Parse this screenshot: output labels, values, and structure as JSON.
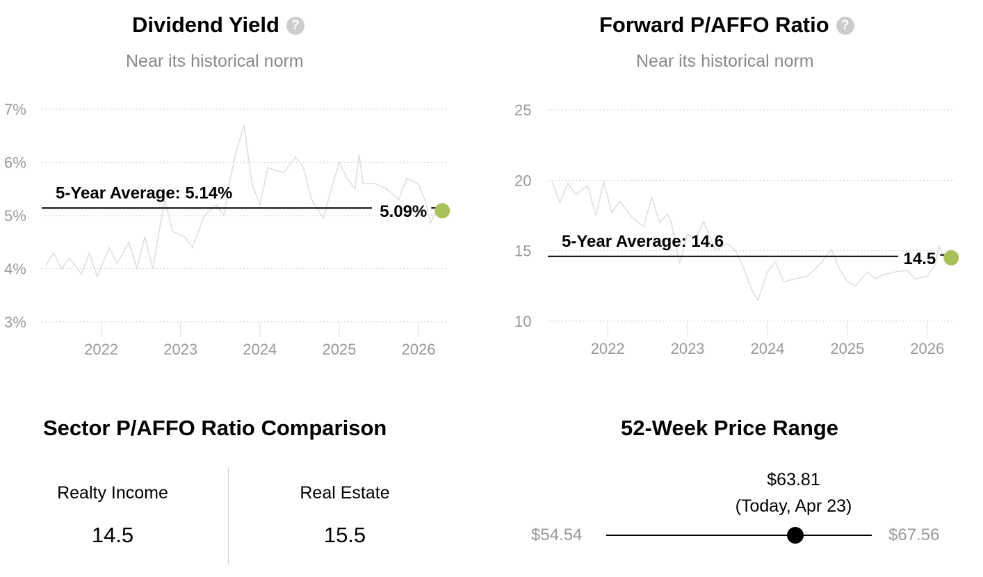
{
  "charts_header": [
    {
      "title": "Dividend Yield",
      "subtitle": "Near its historical norm",
      "help_icon": "question-circle-icon"
    },
    {
      "title": "Forward P/AFFO Ratio",
      "subtitle": "Near its historical norm",
      "help_icon": "question-circle-icon"
    }
  ],
  "chart_data": [
    {
      "type": "line",
      "title": "Dividend Yield",
      "subtitle": "Near its historical norm",
      "ylim": [
        3,
        7
      ],
      "yticks": [
        3,
        4,
        5,
        6,
        7
      ],
      "ytick_labels": [
        "3%",
        "4%",
        "5%",
        "6%",
        "7%"
      ],
      "xticks": [
        2022,
        2023,
        2024,
        2025,
        2026
      ],
      "xtick_labels": [
        "2022",
        "2023",
        "2024",
        "2025",
        "2026"
      ],
      "xlim": [
        2021.25,
        2026.35
      ],
      "grid": true,
      "line_color": "#dddddd",
      "average": {
        "value": 5.14,
        "label": "5-Year Average: 5.14%"
      },
      "current": {
        "value": 5.09,
        "label": "5.09%",
        "color": "#a8c05a"
      },
      "series": [
        {
          "x": [
            2021.3,
            2021.4,
            2021.5,
            2021.6,
            2021.75,
            2021.85,
            2021.95,
            2022.1,
            2022.2,
            2022.35,
            2022.45,
            2022.55,
            2022.65,
            2022.8,
            2022.9,
            2023.05,
            2023.15,
            2023.3,
            2023.45,
            2023.55,
            2023.6,
            2023.7,
            2023.8,
            2023.9,
            2024.0,
            2024.1,
            2024.3,
            2024.45,
            2024.55,
            2024.65,
            2024.8,
            2024.9,
            2025.0,
            2025.1,
            2025.2,
            2025.25,
            2025.3,
            2025.45,
            2025.6,
            2025.75,
            2025.85,
            2026.0,
            2026.1,
            2026.15,
            2026.25,
            2026.3
          ],
          "y": [
            4.05,
            4.3,
            4.0,
            4.2,
            3.9,
            4.3,
            3.85,
            4.4,
            4.1,
            4.5,
            4.0,
            4.6,
            4.0,
            5.3,
            4.7,
            4.6,
            4.4,
            5.0,
            5.2,
            5.0,
            5.5,
            6.2,
            6.7,
            5.6,
            5.2,
            5.9,
            5.8,
            6.1,
            5.9,
            5.3,
            4.95,
            5.5,
            6.0,
            5.7,
            5.5,
            6.15,
            5.6,
            5.6,
            5.5,
            5.3,
            5.7,
            5.6,
            5.2,
            4.85,
            5.2,
            5.09
          ]
        }
      ]
    },
    {
      "type": "line",
      "title": "Forward P/AFFO Ratio",
      "subtitle": "Near its historical norm",
      "ylim": [
        10,
        25
      ],
      "yticks": [
        10,
        15,
        20,
        25
      ],
      "ytick_labels": [
        "10",
        "15",
        "20",
        "25"
      ],
      "xticks": [
        2022,
        2023,
        2024,
        2025,
        2026
      ],
      "xtick_labels": [
        "2022",
        "2023",
        "2024",
        "2025",
        "2026"
      ],
      "xlim": [
        2021.25,
        2026.35
      ],
      "grid": true,
      "line_color": "#dddddd",
      "average": {
        "value": 14.6,
        "label": "5-Year Average: 14.6"
      },
      "current": {
        "value": 14.5,
        "label": "14.5",
        "color": "#a8c05a"
      },
      "series": [
        {
          "x": [
            2021.3,
            2021.4,
            2021.5,
            2021.6,
            2021.75,
            2021.85,
            2021.95,
            2022.05,
            2022.15,
            2022.3,
            2022.45,
            2022.55,
            2022.65,
            2022.75,
            2022.8,
            2022.9,
            2023.0,
            2023.1,
            2023.2,
            2023.35,
            2023.5,
            2023.6,
            2023.7,
            2023.8,
            2023.88,
            2024.0,
            2024.1,
            2024.2,
            2024.35,
            2024.5,
            2024.65,
            2024.8,
            2024.9,
            2025.0,
            2025.1,
            2025.25,
            2025.35,
            2025.45,
            2025.6,
            2025.75,
            2025.85,
            2026.0,
            2026.1,
            2026.15,
            2026.25,
            2026.3
          ],
          "y": [
            20,
            18.4,
            19.8,
            19.0,
            19.6,
            17.5,
            19.9,
            17.7,
            18.5,
            17.4,
            16.7,
            18.8,
            17.0,
            17.6,
            16.9,
            14.1,
            16.2,
            15.8,
            17.1,
            15.0,
            15.5,
            15.0,
            13.8,
            12.3,
            11.5,
            13.5,
            14.2,
            12.8,
            13.0,
            13.2,
            14.0,
            15.1,
            13.7,
            12.8,
            12.5,
            13.5,
            13.0,
            13.3,
            13.5,
            13.6,
            13.0,
            13.2,
            14.0,
            15.3,
            14.1,
            14.5
          ]
        }
      ]
    }
  ],
  "sector": {
    "title": "Sector P/AFFO Ratio Comparison",
    "items": [
      {
        "label": "Realty Income",
        "value": "14.5"
      },
      {
        "label": "Real Estate",
        "value": "15.5"
      }
    ]
  },
  "price_range": {
    "title": "52-Week Price Range",
    "low": "$54.54",
    "high": "$67.56",
    "current": "$63.81",
    "current_note": "(Today, Apr 23)",
    "current_value": 63.81,
    "low_value": 54.54,
    "high_value": 67.56
  }
}
